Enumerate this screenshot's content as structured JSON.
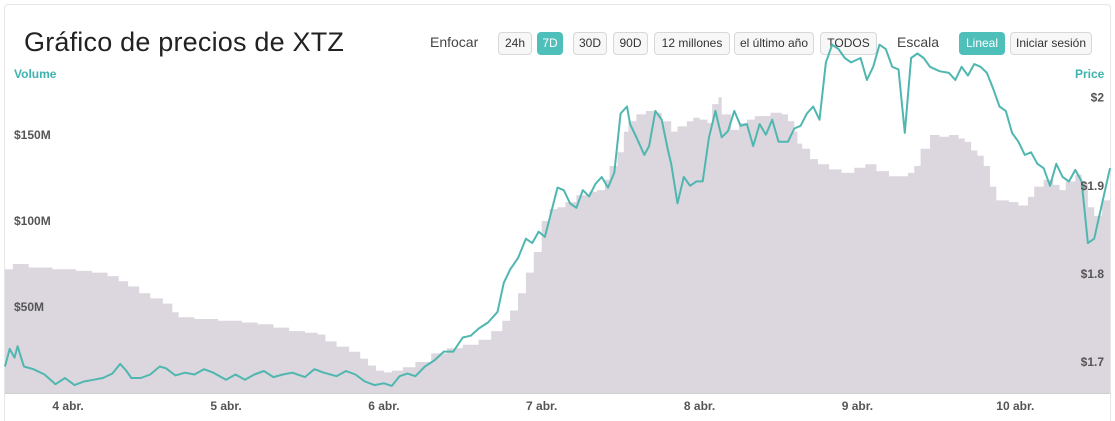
{
  "header": {
    "title": "Gráfico de precios de XTZ",
    "zoom_label": "Enfocar",
    "zoom_buttons": [
      "24h",
      "7D",
      "30D",
      "90D",
      "12 millones",
      "el último año",
      "TODOS"
    ],
    "active_zoom": "7D",
    "scale_label": "Escala",
    "scale_buttons": [
      "Lineal",
      "Iniciar sesión"
    ],
    "active_scale": "Lineal"
  },
  "colors": {
    "price_line": "#4fb7b0",
    "volume_fill": "#dcd6de",
    "accent": "#4fbfba"
  },
  "chart_data": {
    "type": "area",
    "left_axis_title": "Volume",
    "right_axis_title": "Price",
    "x_ticks": [
      "4 abr.",
      "5 abr.",
      "6 abr.",
      "7 abr.",
      "8 abr.",
      "9 abr.",
      "10 abr."
    ],
    "volume_ticks": [
      "$50M",
      "$100M",
      "$150M"
    ],
    "price_ticks": [
      "$1.7",
      "$1.8",
      "$1.9",
      "$2"
    ],
    "x_range": [
      3.6,
      10.6
    ],
    "volume_range_millions": [
      0,
      182
    ],
    "price_range": [
      1.665,
      2.02
    ],
    "series": [
      {
        "name": "Volume",
        "unit": "USD millions",
        "points": [
          [
            3.6,
            72
          ],
          [
            3.65,
            75
          ],
          [
            3.75,
            73
          ],
          [
            3.9,
            72
          ],
          [
            4.05,
            71
          ],
          [
            4.15,
            70
          ],
          [
            4.25,
            68
          ],
          [
            4.32,
            65
          ],
          [
            4.38,
            62
          ],
          [
            4.45,
            58
          ],
          [
            4.52,
            55
          ],
          [
            4.6,
            52
          ],
          [
            4.66,
            47
          ],
          [
            4.7,
            38
          ],
          [
            4.7,
            44
          ],
          [
            4.8,
            43
          ],
          [
            4.95,
            42
          ],
          [
            5.1,
            41
          ],
          [
            5.2,
            40
          ],
          [
            5.3,
            38
          ],
          [
            5.4,
            36
          ],
          [
            5.5,
            35
          ],
          [
            5.58,
            34
          ],
          [
            5.63,
            30
          ],
          [
            5.7,
            27
          ],
          [
            5.78,
            24
          ],
          [
            5.85,
            20
          ],
          [
            5.9,
            16
          ],
          [
            5.95,
            13
          ],
          [
            6.0,
            12
          ],
          [
            6.05,
            13
          ],
          [
            6.12,
            15
          ],
          [
            6.2,
            18
          ],
          [
            6.3,
            23
          ],
          [
            6.4,
            26
          ],
          [
            6.5,
            28
          ],
          [
            6.6,
            31
          ],
          [
            6.68,
            36
          ],
          [
            6.75,
            42
          ],
          [
            6.8,
            48
          ],
          [
            6.85,
            58
          ],
          [
            6.9,
            70
          ],
          [
            6.95,
            82
          ],
          [
            7.0,
            100
          ],
          [
            7.05,
            107
          ],
          [
            7.1,
            108
          ],
          [
            7.15,
            111
          ],
          [
            7.22,
            115
          ],
          [
            7.3,
            117
          ],
          [
            7.35,
            118
          ],
          [
            7.4,
            124
          ],
          [
            7.43,
            132
          ],
          [
            7.48,
            140
          ],
          [
            7.52,
            152
          ],
          [
            7.55,
            158
          ],
          [
            7.6,
            162
          ],
          [
            7.66,
            164
          ],
          [
            7.72,
            163
          ],
          [
            7.76,
            158
          ],
          [
            7.82,
            152
          ],
          [
            7.86,
            155
          ],
          [
            7.92,
            158
          ],
          [
            7.96,
            160
          ],
          [
            8.0,
            159
          ],
          [
            8.05,
            157
          ],
          [
            8.08,
            168
          ],
          [
            8.12,
            172
          ],
          [
            8.14,
            162
          ],
          [
            8.2,
            153
          ],
          [
            8.25,
            157
          ],
          [
            8.3,
            159
          ],
          [
            8.35,
            161
          ],
          [
            8.45,
            163
          ],
          [
            8.52,
            162
          ],
          [
            8.56,
            158
          ],
          [
            8.6,
            152
          ],
          [
            8.62,
            145
          ],
          [
            8.65,
            142
          ],
          [
            8.7,
            136
          ],
          [
            8.75,
            133
          ],
          [
            8.82,
            130
          ],
          [
            8.9,
            128
          ],
          [
            8.98,
            131
          ],
          [
            9.05,
            133
          ],
          [
            9.12,
            129
          ],
          [
            9.2,
            126
          ],
          [
            9.28,
            126
          ],
          [
            9.32,
            128
          ],
          [
            9.36,
            132
          ],
          [
            9.4,
            142
          ],
          [
            9.46,
            150
          ],
          [
            9.52,
            149
          ],
          [
            9.58,
            150
          ],
          [
            9.64,
            148
          ],
          [
            9.68,
            146
          ],
          [
            9.72,
            141
          ],
          [
            9.76,
            138
          ],
          [
            9.8,
            132
          ],
          [
            9.84,
            120
          ],
          [
            9.88,
            112
          ],
          [
            9.96,
            111
          ],
          [
            10.02,
            109
          ],
          [
            10.08,
            114
          ],
          [
            10.12,
            120
          ],
          [
            10.18,
            124
          ],
          [
            10.24,
            121
          ],
          [
            10.28,
            118
          ],
          [
            10.32,
            123
          ],
          [
            10.38,
            127
          ],
          [
            10.42,
            122
          ],
          [
            10.46,
            108
          ],
          [
            10.5,
            103
          ],
          [
            10.55,
            112
          ],
          [
            10.6,
            120
          ]
        ]
      },
      {
        "name": "Price",
        "unit": "USD",
        "points": [
          [
            3.6,
            1.695
          ],
          [
            3.63,
            1.715
          ],
          [
            3.66,
            1.705
          ],
          [
            3.68,
            1.718
          ],
          [
            3.72,
            1.695
          ],
          [
            3.78,
            1.692
          ],
          [
            3.85,
            1.686
          ],
          [
            3.92,
            1.675
          ],
          [
            3.98,
            1.682
          ],
          [
            4.04,
            1.674
          ],
          [
            4.1,
            1.678
          ],
          [
            4.16,
            1.68
          ],
          [
            4.22,
            1.682
          ],
          [
            4.28,
            1.687
          ],
          [
            4.33,
            1.698
          ],
          [
            4.37,
            1.69
          ],
          [
            4.4,
            1.682
          ],
          [
            4.46,
            1.682
          ],
          [
            4.52,
            1.686
          ],
          [
            4.58,
            1.695
          ],
          [
            4.62,
            1.693
          ],
          [
            4.68,
            1.685
          ],
          [
            4.74,
            1.688
          ],
          [
            4.8,
            1.686
          ],
          [
            4.86,
            1.692
          ],
          [
            4.92,
            1.688
          ],
          [
            5.0,
            1.68
          ],
          [
            5.06,
            1.686
          ],
          [
            5.12,
            1.68
          ],
          [
            5.18,
            1.686
          ],
          [
            5.24,
            1.69
          ],
          [
            5.3,
            1.683
          ],
          [
            5.36,
            1.686
          ],
          [
            5.42,
            1.688
          ],
          [
            5.5,
            1.683
          ],
          [
            5.56,
            1.692
          ],
          [
            5.62,
            1.688
          ],
          [
            5.7,
            1.684
          ],
          [
            5.76,
            1.69
          ],
          [
            5.82,
            1.686
          ],
          [
            5.88,
            1.678
          ],
          [
            5.94,
            1.674
          ],
          [
            6.0,
            1.676
          ],
          [
            6.05,
            1.673
          ],
          [
            6.1,
            1.684
          ],
          [
            6.15,
            1.687
          ],
          [
            6.2,
            1.684
          ],
          [
            6.26,
            1.695
          ],
          [
            6.32,
            1.702
          ],
          [
            6.38,
            1.712
          ],
          [
            6.44,
            1.712
          ],
          [
            6.5,
            1.728
          ],
          [
            6.55,
            1.73
          ],
          [
            6.6,
            1.738
          ],
          [
            6.66,
            1.745
          ],
          [
            6.72,
            1.757
          ],
          [
            6.76,
            1.79
          ],
          [
            6.8,
            1.805
          ],
          [
            6.85,
            1.818
          ],
          [
            6.9,
            1.84
          ],
          [
            6.94,
            1.835
          ],
          [
            6.98,
            1.848
          ],
          [
            7.02,
            1.842
          ],
          [
            7.06,
            1.87
          ],
          [
            7.1,
            1.898
          ],
          [
            7.14,
            1.895
          ],
          [
            7.18,
            1.88
          ],
          [
            7.22,
            1.875
          ],
          [
            7.26,
            1.895
          ],
          [
            7.3,
            1.888
          ],
          [
            7.34,
            1.902
          ],
          [
            7.38,
            1.91
          ],
          [
            7.42,
            1.898
          ],
          [
            7.46,
            1.915
          ],
          [
            7.5,
            1.982
          ],
          [
            7.54,
            1.99
          ],
          [
            7.56,
            1.97
          ],
          [
            7.6,
            1.955
          ],
          [
            7.65,
            1.935
          ],
          [
            7.68,
            1.945
          ],
          [
            7.72,
            1.985
          ],
          [
            7.76,
            1.975
          ],
          [
            7.8,
            1.94
          ],
          [
            7.82,
            1.925
          ],
          [
            7.86,
            1.88
          ],
          [
            7.9,
            1.91
          ],
          [
            7.94,
            1.9
          ],
          [
            7.98,
            1.905
          ],
          [
            8.02,
            1.905
          ],
          [
            8.06,
            1.955
          ],
          [
            8.1,
            1.985
          ],
          [
            8.14,
            1.955
          ],
          [
            8.18,
            1.962
          ],
          [
            8.22,
            1.985
          ],
          [
            8.26,
            1.968
          ],
          [
            8.3,
            1.97
          ],
          [
            8.34,
            1.945
          ],
          [
            8.38,
            1.97
          ],
          [
            8.42,
            1.958
          ],
          [
            8.46,
            1.975
          ],
          [
            8.5,
            1.95
          ],
          [
            8.56,
            1.95
          ],
          [
            8.6,
            1.965
          ],
          [
            8.64,
            1.968
          ],
          [
            8.68,
            1.982
          ],
          [
            8.72,
            1.99
          ],
          [
            8.76,
            1.975
          ],
          [
            8.8,
            2.04
          ],
          [
            8.84,
            2.06
          ],
          [
            8.88,
            2.055
          ],
          [
            8.92,
            2.045
          ],
          [
            8.96,
            2.04
          ],
          [
            9.02,
            2.045
          ],
          [
            9.06,
            2.02
          ],
          [
            9.1,
            2.035
          ],
          [
            9.14,
            2.06
          ],
          [
            9.18,
            2.055
          ],
          [
            9.22,
            2.035
          ],
          [
            9.26,
            2.032
          ],
          [
            9.3,
            1.96
          ],
          [
            9.34,
            2.045
          ],
          [
            9.38,
            2.05
          ],
          [
            9.42,
            2.045
          ],
          [
            9.46,
            2.035
          ],
          [
            9.52,
            2.03
          ],
          [
            9.58,
            2.028
          ],
          [
            9.62,
            2.02
          ],
          [
            9.66,
            2.035
          ],
          [
            9.7,
            2.025
          ],
          [
            9.74,
            2.038
          ],
          [
            9.78,
            2.035
          ],
          [
            9.82,
            2.028
          ],
          [
            9.86,
            2.01
          ],
          [
            9.9,
            1.99
          ],
          [
            9.94,
            1.985
          ],
          [
            9.98,
            1.96
          ],
          [
            10.02,
            1.95
          ],
          [
            10.06,
            1.935
          ],
          [
            10.1,
            1.938
          ],
          [
            10.14,
            1.925
          ],
          [
            10.18,
            1.92
          ],
          [
            10.22,
            1.9
          ],
          [
            10.26,
            1.925
          ],
          [
            10.3,
            1.91
          ],
          [
            10.34,
            1.905
          ],
          [
            10.38,
            1.918
          ],
          [
            10.42,
            1.905
          ],
          [
            10.46,
            1.835
          ],
          [
            10.5,
            1.84
          ],
          [
            10.55,
            1.88
          ],
          [
            10.6,
            1.92
          ]
        ]
      }
    ]
  }
}
